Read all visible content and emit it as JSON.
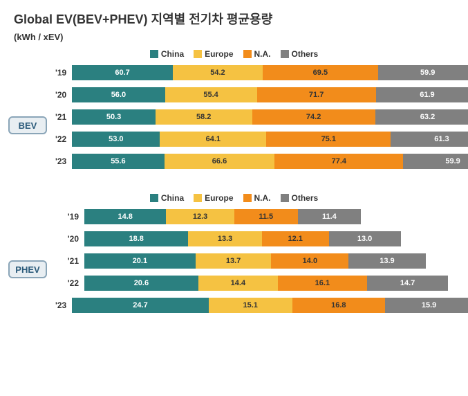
{
  "title": "Global EV(BEV+PHEV) 지역별 전기차 평균용량",
  "subtitle": "(kWh / xEV)",
  "colors": {
    "china": "#2b8080",
    "europe": "#f5c242",
    "na": "#f28c1b",
    "others": "#808080",
    "bg": "#ffffff",
    "text": "#333333"
  },
  "legend": [
    "China",
    "Europe",
    "N.A.",
    "Others"
  ],
  "scale_bev": 2.4,
  "scale_phev": 8.0,
  "sections": [
    {
      "badge": "BEV",
      "years": [
        "'19",
        "'20",
        "'21",
        "'22",
        "'23"
      ],
      "rows": [
        {
          "china": 60.7,
          "europe": 54.2,
          "na": 69.5,
          "others": 59.9
        },
        {
          "china": 56.0,
          "europe": 55.4,
          "na": 71.7,
          "others": 61.9
        },
        {
          "china": 50.3,
          "europe": 58.2,
          "na": 74.2,
          "others": 63.2
        },
        {
          "china": 53.0,
          "europe": 64.1,
          "na": 75.1,
          "others": 61.3
        },
        {
          "china": 55.6,
          "europe": 66.6,
          "na": 77.4,
          "others": 59.9
        }
      ]
    },
    {
      "badge": "PHEV",
      "years": [
        "'19",
        "'20",
        "'21",
        "'22",
        "'23"
      ],
      "rows": [
        {
          "china": 14.8,
          "europe": 12.3,
          "na": 11.5,
          "others": 11.4
        },
        {
          "china": 18.8,
          "europe": 13.3,
          "na": 12.1,
          "others": 13.0
        },
        {
          "china": 20.1,
          "europe": 13.7,
          "na": 14.0,
          "others": 13.9
        },
        {
          "china": 20.6,
          "europe": 14.4,
          "na": 16.1,
          "others": 14.7
        },
        {
          "china": 24.7,
          "europe": 15.1,
          "na": 16.8,
          "others": 15.9
        }
      ]
    }
  ]
}
